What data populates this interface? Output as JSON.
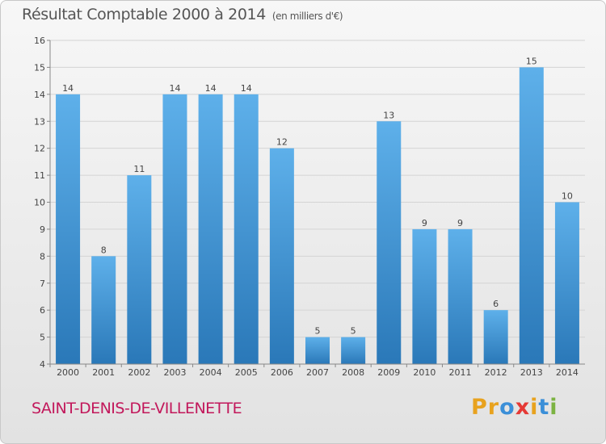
{
  "header": {
    "title": "Résultat Comptable 2000 à 2014",
    "unit": "(en milliers d'€)"
  },
  "footer": {
    "commune": "SAINT-DENIS-DE-VILLENETTE",
    "logo_letters": [
      "P",
      "r",
      "o",
      "x",
      "i",
      "t",
      "i"
    ],
    "logo_colors": [
      "#e8a21e",
      "#e8a21e",
      "#3b8fd8",
      "#e53935",
      "#e8a21e",
      "#3b8fd8",
      "#7cb342"
    ]
  },
  "chart_data": {
    "type": "bar",
    "title": "Résultat Comptable 2000 à 2014",
    "subtitle": "(en milliers d'€)",
    "xlabel": "",
    "ylabel": "",
    "categories": [
      "2000",
      "2001",
      "2002",
      "2003",
      "2004",
      "2005",
      "2006",
      "2007",
      "2008",
      "2009",
      "2010",
      "2011",
      "2012",
      "2013",
      "2014"
    ],
    "values": [
      14,
      8,
      11,
      14,
      14,
      14,
      12,
      5,
      5,
      13,
      9,
      9,
      6,
      15,
      10
    ],
    "ylim": [
      4,
      16
    ],
    "yticks": [
      4,
      5,
      6,
      7,
      8,
      9,
      10,
      11,
      12,
      13,
      14,
      15,
      16
    ],
    "grid": true,
    "bar_color_top": "#5eb0ea",
    "bar_color_bottom": "#2a78b8"
  }
}
